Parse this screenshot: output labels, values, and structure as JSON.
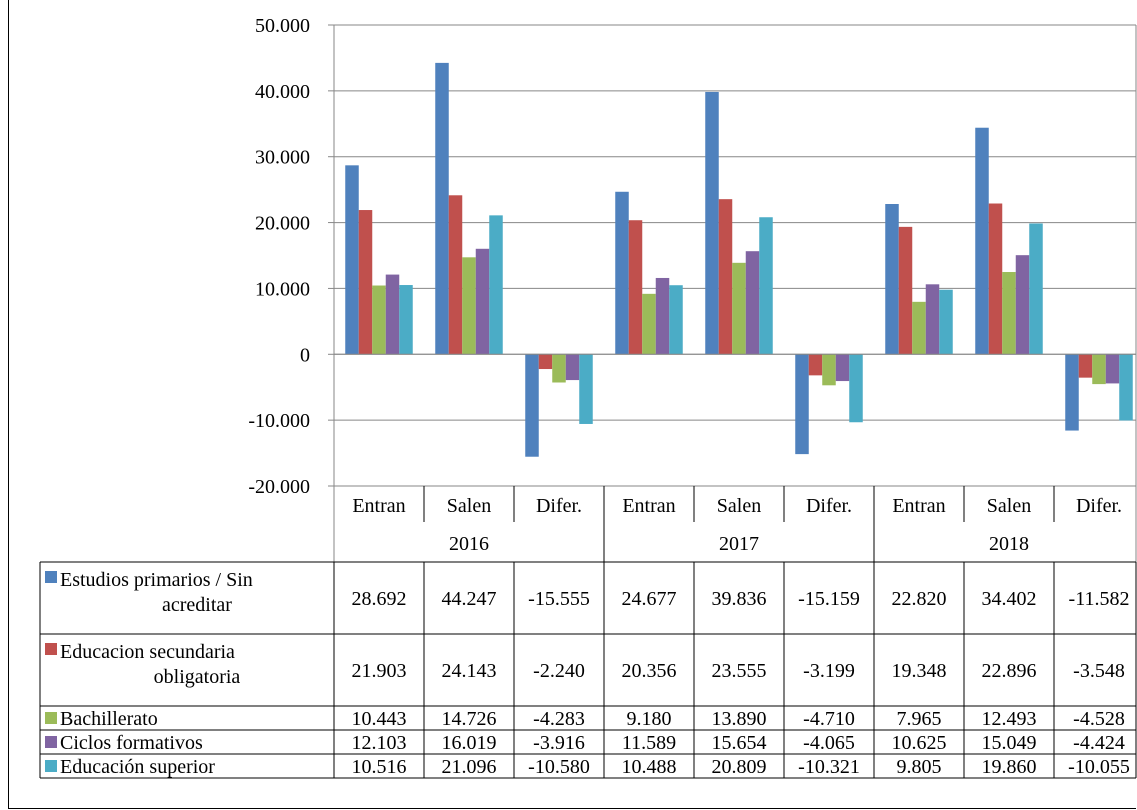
{
  "chart_data": {
    "type": "bar",
    "ylim": [
      -20000,
      50000
    ],
    "yticks": [
      50000,
      40000,
      30000,
      20000,
      10000,
      0,
      -10000,
      -20000
    ],
    "ytick_labels": [
      "50.000",
      "40.000",
      "30.000",
      "20.000",
      "10.000",
      "0",
      "-10.000",
      "-20.000"
    ],
    "grid": true,
    "legend": "data-table",
    "categories": [
      "Entran",
      "Salen",
      "Difer.",
      "Entran",
      "Salen",
      "Difer.",
      "Entran",
      "Salen",
      "Difer."
    ],
    "groups": [
      {
        "label": "2016",
        "span": [
          0,
          2
        ]
      },
      {
        "label": "2017",
        "span": [
          3,
          5
        ]
      },
      {
        "label": "2018",
        "span": [
          6,
          8
        ]
      }
    ],
    "series": [
      {
        "name": "Estudios primarios / Sin acreditar",
        "name_lines": [
          "Estudios primarios / Sin",
          "acreditar"
        ],
        "color": "#4F81BD",
        "values": [
          28692,
          44247,
          -15555,
          24677,
          39836,
          -15159,
          22820,
          34402,
          -11582
        ],
        "labels": [
          "28.692",
          "44.247",
          "-15.555",
          "24.677",
          "39.836",
          "-15.159",
          "22.820",
          "34.402",
          "-11.582"
        ]
      },
      {
        "name": "Educacion secundaria obligatoria",
        "name_lines": [
          "Educacion secundaria",
          "obligatoria"
        ],
        "color": "#C0504D",
        "values": [
          21903,
          24143,
          -2240,
          20356,
          23555,
          -3199,
          19348,
          22896,
          -3548
        ],
        "labels": [
          "21.903",
          "24.143",
          "-2.240",
          "20.356",
          "23.555",
          "-3.199",
          "19.348",
          "22.896",
          "-3.548"
        ]
      },
      {
        "name": "Bachillerato",
        "name_lines": [
          "Bachillerato"
        ],
        "color": "#9BBB59",
        "values": [
          10443,
          14726,
          -4283,
          9180,
          13890,
          -4710,
          7965,
          12493,
          -4528
        ],
        "labels": [
          "10.443",
          "14.726",
          "-4.283",
          "9.180",
          "13.890",
          "-4.710",
          "7.965",
          "12.493",
          "-4.528"
        ]
      },
      {
        "name": "Ciclos formativos",
        "name_lines": [
          "Ciclos formativos"
        ],
        "color": "#8064A2",
        "values": [
          12103,
          16019,
          -3916,
          11589,
          15654,
          -4065,
          10625,
          15049,
          -4424
        ],
        "labels": [
          "12.103",
          "16.019",
          "-3.916",
          "11.589",
          "15.654",
          "-4.065",
          "10.625",
          "15.049",
          "-4.424"
        ]
      },
      {
        "name": "Educación superior",
        "name_lines": [
          "Educación superior"
        ],
        "color": "#4BACC6",
        "values": [
          10516,
          21096,
          -10580,
          10488,
          20809,
          -10321,
          9805,
          19860,
          -10055
        ],
        "labels": [
          "10.516",
          "21.096",
          "-10.580",
          "10.488",
          "20.809",
          "-10.321",
          "9.805",
          "19.860",
          "-10.055"
        ]
      }
    ]
  }
}
